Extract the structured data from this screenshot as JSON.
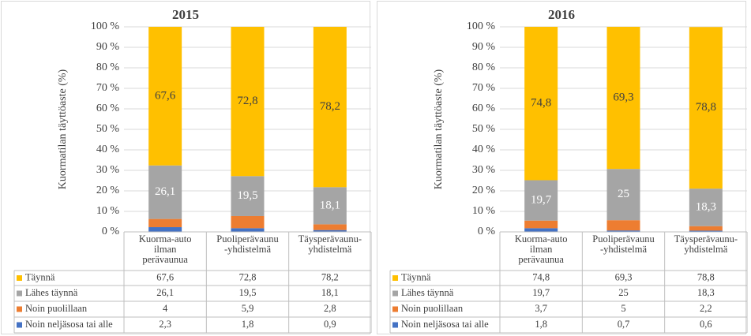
{
  "chart_data": [
    {
      "type": "stacked-bar",
      "title": "2015",
      "y_label": "Kuormatilan täyttöaste (%)",
      "categories": [
        [
          "Kuorma-auto",
          "ilman",
          "perävaunua"
        ],
        [
          "Puoliperävaunu",
          "-yhdistelmä"
        ],
        [
          "Täysperävaunu-",
          "yhdistelmä"
        ]
      ],
      "ylim": [
        0,
        100
      ],
      "yticks": [
        {
          "value": 0,
          "label": "0 %"
        },
        {
          "value": 10,
          "label": "10 %"
        },
        {
          "value": 20,
          "label": "20 %"
        },
        {
          "value": 30,
          "label": "30 %"
        },
        {
          "value": 40,
          "label": "40 %"
        },
        {
          "value": 50,
          "label": "50 %"
        },
        {
          "value": 60,
          "label": "60 %"
        },
        {
          "value": 70,
          "label": "70 %"
        },
        {
          "value": 80,
          "label": "80 %"
        },
        {
          "value": 90,
          "label": "90 %"
        },
        {
          "value": 100,
          "label": "100 %"
        }
      ],
      "grid": true,
      "series": [
        {
          "name": "Täynnä",
          "color": "#ffc000",
          "values": [
            67.6,
            72.8,
            78.2
          ],
          "value_labels": [
            "67,6",
            "72,8",
            "78,2"
          ],
          "data_labels": true
        },
        {
          "name": "Lähes täynnä",
          "color": "#a5a5a5",
          "values": [
            26.1,
            19.5,
            18.1
          ],
          "value_labels": [
            "26,1",
            "19,5",
            "18,1"
          ],
          "data_labels": true
        },
        {
          "name": "Noin puolillaan",
          "color": "#ed7d31",
          "values": [
            4,
            5.9,
            2.8
          ],
          "value_labels": [
            "4",
            "5,9",
            "2,8"
          ],
          "data_labels": false
        },
        {
          "name": "Noin neljäsosa tai alle",
          "color": "#4472c4",
          "values": [
            2.3,
            1.8,
            0.9
          ],
          "value_labels": [
            "2,3",
            "1,8",
            "0,9"
          ],
          "data_labels": false
        }
      ]
    },
    {
      "type": "stacked-bar",
      "title": "2016",
      "y_label": "Kuormatilan täyttöaste (%)",
      "categories": [
        [
          "Kuorma-auto",
          "ilman",
          "perävaunua"
        ],
        [
          "Puoliperävaunu",
          "-yhdistelmä"
        ],
        [
          "Täysperävaunu-",
          "yhdistelmä"
        ]
      ],
      "ylim": [
        0,
        100
      ],
      "yticks": [
        {
          "value": 0,
          "label": "0 %"
        },
        {
          "value": 10,
          "label": "10 %"
        },
        {
          "value": 20,
          "label": "20 %"
        },
        {
          "value": 30,
          "label": "30 %"
        },
        {
          "value": 40,
          "label": "40 %"
        },
        {
          "value": 50,
          "label": "50 %"
        },
        {
          "value": 60,
          "label": "60 %"
        },
        {
          "value": 70,
          "label": "70 %"
        },
        {
          "value": 80,
          "label": "80 %"
        },
        {
          "value": 90,
          "label": "90 %"
        },
        {
          "value": 100,
          "label": "100 %"
        }
      ],
      "grid": true,
      "series": [
        {
          "name": "Täynnä",
          "color": "#ffc000",
          "values": [
            74.8,
            69.3,
            78.8
          ],
          "value_labels": [
            "74,8",
            "69,3",
            "78,8"
          ],
          "data_labels": true
        },
        {
          "name": "Lähes täynnä",
          "color": "#a5a5a5",
          "values": [
            19.7,
            25,
            18.3
          ],
          "value_labels": [
            "19,7",
            "25",
            "18,3"
          ],
          "data_labels": true
        },
        {
          "name": "Noin puolillaan",
          "color": "#ed7d31",
          "values": [
            3.7,
            5,
            2.2
          ],
          "value_labels": [
            "3,7",
            "5",
            "2,2"
          ],
          "data_labels": false
        },
        {
          "name": "Noin neljäsosa tai alle",
          "color": "#4472c4",
          "values": [
            1.8,
            0.7,
            0.6
          ],
          "value_labels": [
            "1,8",
            "0,7",
            "0,6"
          ],
          "data_labels": false
        }
      ]
    }
  ]
}
